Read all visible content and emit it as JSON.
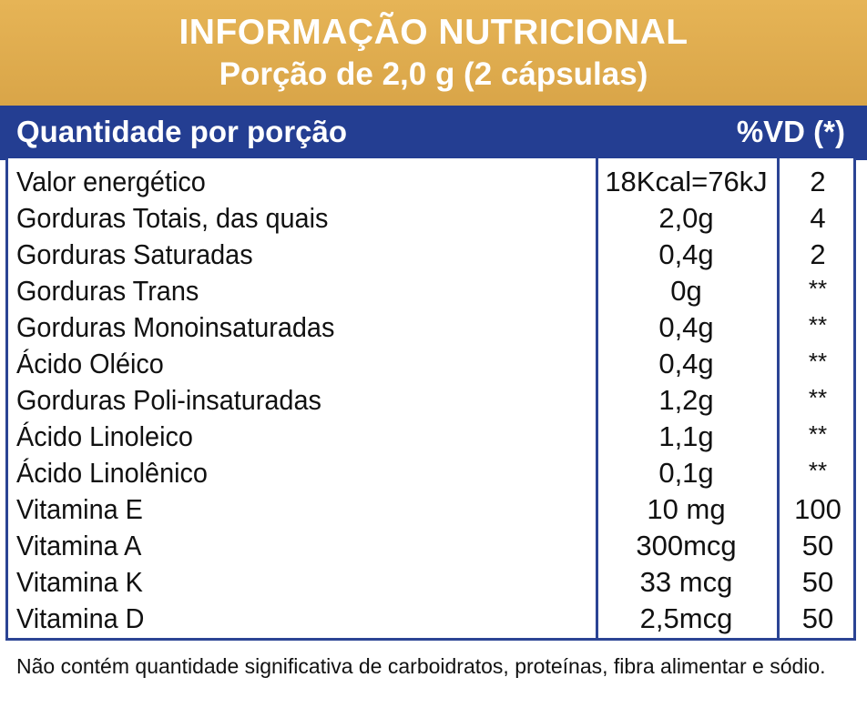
{
  "header": {
    "title": "INFORMAÇÃO NUTRICIONAL",
    "subtitle": "Porção de 2,0 g (2 cápsulas)"
  },
  "band": {
    "left": "Quantidade por porção",
    "right": "%VD (*)"
  },
  "rows": [
    {
      "name": "Valor energético",
      "qty": "18Kcal=76kJ",
      "vd": "2"
    },
    {
      "name": "Gorduras Totais, das quais",
      "qty": "2,0g",
      "vd": "4"
    },
    {
      "name": "Gorduras Saturadas",
      "qty": "0,4g",
      "vd": "2"
    },
    {
      "name": "Gorduras Trans",
      "qty": "0g",
      "vd": "**"
    },
    {
      "name": "Gorduras Monoinsaturadas",
      "qty": "0,4g",
      "vd": "**"
    },
    {
      "name": "Ácido Oléico",
      "qty": "0,4g",
      "vd": "**"
    },
    {
      "name": "Gorduras Poli-insaturadas",
      "qty": "1,2g",
      "vd": "**"
    },
    {
      "name": "Ácido Linoleico",
      "qty": "1,1g",
      "vd": "**"
    },
    {
      "name": "Ácido Linolênico",
      "qty": "0,1g",
      "vd": "**"
    },
    {
      "name": "Vitamina E",
      "qty": "10 mg",
      "vd": "100"
    },
    {
      "name": "Vitamina A",
      "qty": "300mcg",
      "vd": "50"
    },
    {
      "name": "Vitamina K",
      "qty": "33 mcg",
      "vd": "50"
    },
    {
      "name": "Vitamina D",
      "qty": "2,5mcg",
      "vd": "50"
    }
  ],
  "footnote": "Não contém quantidade significativa  de carboidratos, proteínas, fibra alimentar e sódio.",
  "colors": {
    "header_gold": "#e6b456",
    "band_blue": "#243e92",
    "text": "#111111"
  }
}
